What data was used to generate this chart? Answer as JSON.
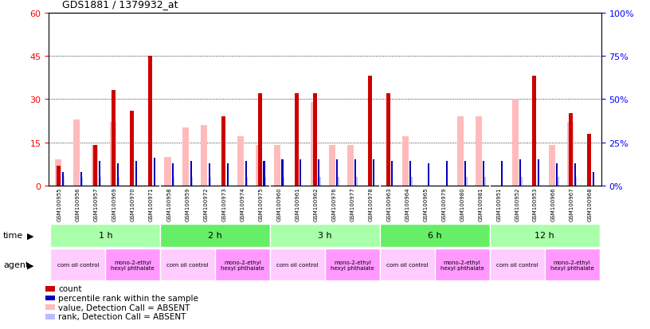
{
  "title": "GDS1881 / 1379932_at",
  "samples": [
    "GSM100955",
    "GSM100956",
    "GSM100957",
    "GSM100969",
    "GSM100970",
    "GSM100971",
    "GSM100958",
    "GSM100959",
    "GSM100972",
    "GSM100973",
    "GSM100974",
    "GSM100975",
    "GSM100960",
    "GSM100961",
    "GSM100962",
    "GSM100976",
    "GSM100977",
    "GSM100978",
    "GSM100963",
    "GSM100964",
    "GSM100965",
    "GSM100979",
    "GSM100980",
    "GSM100981",
    "GSM100951",
    "GSM100952",
    "GSM100953",
    "GSM100966",
    "GSM100967",
    "GSM100968"
  ],
  "count_values": [
    7,
    0,
    14,
    33,
    26,
    45,
    0,
    0,
    0,
    24,
    0,
    32,
    0,
    32,
    32,
    0,
    0,
    38,
    32,
    0,
    0,
    0,
    0,
    0,
    0,
    0,
    38,
    0,
    25,
    18
  ],
  "percentile_values": [
    8,
    8,
    14,
    13,
    14,
    16,
    13,
    14,
    13,
    13,
    14,
    14,
    15,
    15,
    15,
    15,
    15,
    15,
    14,
    14,
    13,
    14,
    14,
    14,
    14,
    15,
    15,
    13,
    13,
    8
  ],
  "absent_value_values": [
    9,
    23,
    14,
    22,
    0,
    0,
    10,
    20,
    21,
    0,
    17,
    14,
    14,
    0,
    29,
    14,
    14,
    0,
    0,
    17,
    0,
    0,
    24,
    24,
    0,
    30,
    0,
    14,
    22,
    0
  ],
  "absent_rank_values": [
    5,
    5,
    5,
    5,
    0,
    0,
    5,
    5,
    5,
    0,
    5,
    5,
    5,
    0,
    5,
    5,
    5,
    0,
    0,
    5,
    0,
    0,
    5,
    5,
    0,
    5,
    0,
    5,
    5,
    0
  ],
  "time_groups": [
    {
      "label": "1 h",
      "start": 0,
      "end": 6
    },
    {
      "label": "2 h",
      "start": 6,
      "end": 12
    },
    {
      "label": "3 h",
      "start": 12,
      "end": 18
    },
    {
      "label": "6 h",
      "start": 18,
      "end": 24
    },
    {
      "label": "12 h",
      "start": 24,
      "end": 30
    }
  ],
  "agent_groups": [
    {
      "label": "corn oil control",
      "start": 0,
      "end": 3
    },
    {
      "label": "mono-2-ethyl\nhexyl phthalate",
      "start": 3,
      "end": 6
    },
    {
      "label": "corn oil control",
      "start": 6,
      "end": 9
    },
    {
      "label": "mono-2-ethyl\nhexyl phthalate",
      "start": 9,
      "end": 12
    },
    {
      "label": "corn oil control",
      "start": 12,
      "end": 15
    },
    {
      "label": "mono-2-ethyl\nhexyl phthalate",
      "start": 15,
      "end": 18
    },
    {
      "label": "corn oil control",
      "start": 18,
      "end": 21
    },
    {
      "label": "mono-2-ethyl\nhexyl phthalate",
      "start": 21,
      "end": 24
    },
    {
      "label": "corn oil control",
      "start": 24,
      "end": 27
    },
    {
      "label": "mono-2-ethyl\nhexyl phthalate",
      "start": 27,
      "end": 30
    }
  ],
  "ylim_left": [
    0,
    60
  ],
  "ylim_right": [
    0,
    100
  ],
  "yticks_left": [
    0,
    15,
    30,
    45,
    60
  ],
  "yticks_right": [
    0,
    25,
    50,
    75,
    100
  ],
  "color_count": "#cc0000",
  "color_percentile": "#0000bb",
  "color_absent_value": "#ffbbbb",
  "color_absent_rank": "#bbbbff",
  "background_color": "#ffffff",
  "plot_bg_color": "#ffffff",
  "tick_area_color": "#cccccc",
  "time_row_color_light": "#aaffaa",
  "time_row_color_dark": "#66ee66",
  "agent_corn_color": "#ffccff",
  "agent_mono_color": "#ff99ff"
}
